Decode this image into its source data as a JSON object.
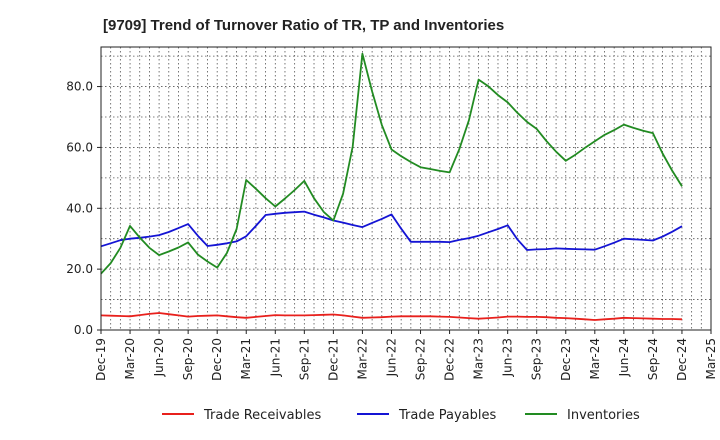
{
  "chart_data": {
    "type": "line",
    "title": "[9709]  Trend of Turnover Ratio of TR, TP and Inventories",
    "xlabel": "",
    "ylabel": "",
    "x_ticks": [
      "Dec-19",
      "Mar-20",
      "Jun-20",
      "Sep-20",
      "Dec-20",
      "Mar-21",
      "Jun-21",
      "Sep-21",
      "Dec-21",
      "Mar-22",
      "Jun-22",
      "Sep-22",
      "Dec-22",
      "Mar-23",
      "Jun-23",
      "Sep-23",
      "Dec-23",
      "Mar-24",
      "Jun-24",
      "Sep-24",
      "Dec-24",
      "Mar-25"
    ],
    "y_ticks": [
      "0.0",
      "20.0",
      "40.0",
      "60.0",
      "80.0"
    ],
    "ylim": [
      0,
      93
    ],
    "grid": true,
    "legend_position": "bottom",
    "x": [
      "Dec-19",
      "Jan-20",
      "Feb-20",
      "Mar-20",
      "Apr-20",
      "May-20",
      "Jun-20",
      "Jul-20",
      "Aug-20",
      "Sep-20",
      "Oct-20",
      "Nov-20",
      "Dec-20",
      "Jan-21",
      "Feb-21",
      "Mar-21",
      "Apr-21",
      "May-21",
      "Jun-21",
      "Jul-21",
      "Aug-21",
      "Sep-21",
      "Oct-21",
      "Nov-21",
      "Dec-21",
      "Jan-22",
      "Feb-22",
      "Mar-22",
      "Apr-22",
      "May-22",
      "Jun-22",
      "Jul-22",
      "Aug-22",
      "Sep-22",
      "Oct-22",
      "Nov-22",
      "Dec-22",
      "Jan-23",
      "Feb-23",
      "Mar-23",
      "Apr-23",
      "May-23",
      "Jun-23",
      "Jul-23",
      "Aug-23",
      "Sep-23",
      "Oct-23",
      "Nov-23",
      "Dec-23",
      "Jan-24",
      "Feb-24",
      "Mar-24",
      "Apr-24",
      "May-24",
      "Jun-24",
      "Jul-24",
      "Aug-24",
      "Sep-24",
      "Oct-24",
      "Nov-24",
      "Dec-24"
    ],
    "series": [
      {
        "name": "Trade Receivables",
        "color": "#e8201c",
        "values": [
          4.8,
          4.7,
          4.6,
          4.5,
          4.9,
          5.3,
          5.6,
          5.2,
          4.8,
          4.4,
          4.6,
          4.7,
          4.8,
          4.5,
          4.2,
          4.0,
          4.3,
          4.6,
          4.9,
          4.8,
          4.8,
          4.8,
          4.9,
          5.0,
          5.1,
          4.8,
          4.4,
          4.0,
          4.1,
          4.2,
          4.4,
          4.5,
          4.5,
          4.5,
          4.5,
          4.4,
          4.3,
          4.1,
          3.9,
          3.7,
          3.9,
          4.1,
          4.4,
          4.4,
          4.3,
          4.3,
          4.2,
          4.0,
          3.9,
          3.7,
          3.5,
          3.3,
          3.5,
          3.7,
          4.0,
          3.9,
          3.8,
          3.7,
          3.6,
          3.6,
          3.5
        ]
      },
      {
        "name": "Trade Payables",
        "color": "#1414d4",
        "values": [
          27.5,
          28.5,
          29.5,
          30.0,
          30.3,
          30.7,
          31.2,
          32.2,
          33.5,
          34.8,
          31.0,
          27.6,
          28.0,
          28.5,
          29.1,
          30.8,
          34.2,
          37.8,
          38.2,
          38.5,
          38.7,
          38.9,
          37.9,
          37.0,
          36.0,
          35.3,
          34.5,
          33.8,
          35.2,
          36.5,
          38.0,
          33.3,
          29.0,
          29.0,
          29.0,
          29.0,
          28.9,
          29.6,
          30.2,
          31.0,
          32.1,
          33.2,
          34.4,
          29.8,
          26.3,
          26.5,
          26.6,
          26.8,
          26.7,
          26.6,
          26.5,
          26.4,
          27.5,
          28.7,
          30.0,
          29.8,
          29.6,
          29.4,
          30.7,
          32.3,
          34.1
        ]
      },
      {
        "name": "Inventories",
        "color": "#228b22",
        "values": [
          18.5,
          22.0,
          27.0,
          34.2,
          30.4,
          27.0,
          24.6,
          25.8,
          27.1,
          28.8,
          24.8,
          22.5,
          20.5,
          25.3,
          33.2,
          49.3,
          46.4,
          43.3,
          40.6,
          43.2,
          46.0,
          49.0,
          43.3,
          38.8,
          36.0,
          44.8,
          60.3,
          90.8,
          78.4,
          67.4,
          59.3,
          57.1,
          55.2,
          53.5,
          52.9,
          52.3,
          51.8,
          59.4,
          68.9,
          82.3,
          80.1,
          77.2,
          74.8,
          71.4,
          68.4,
          66.1,
          62.1,
          58.6,
          55.6,
          57.6,
          59.9,
          62.0,
          64.1,
          65.7,
          67.5,
          66.4,
          65.5,
          64.7,
          58.0,
          52.3,
          47.2
        ]
      }
    ]
  }
}
